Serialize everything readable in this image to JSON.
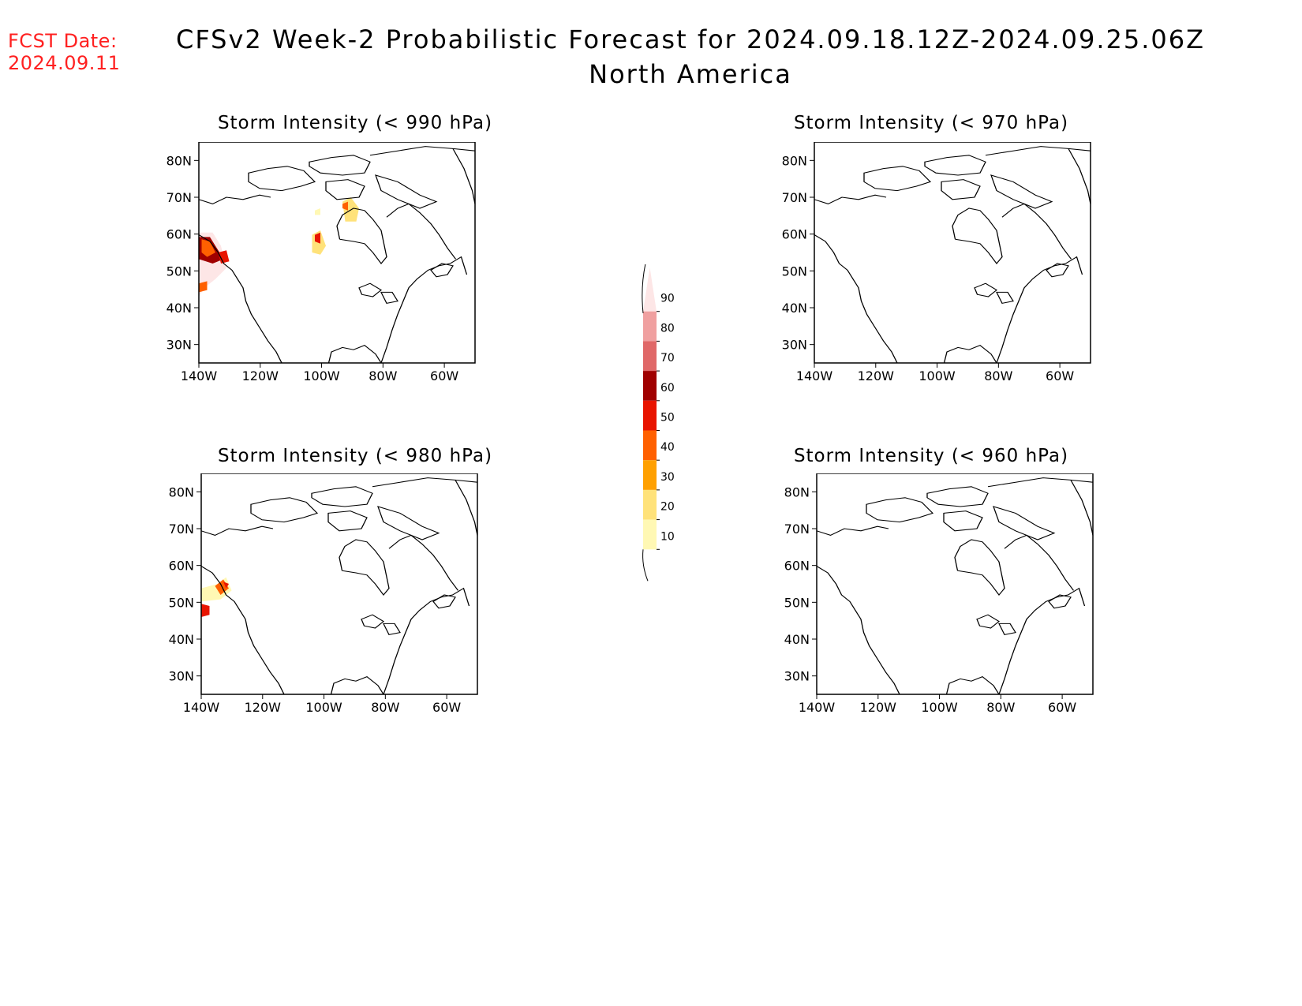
{
  "header": {
    "fcst_label": "FCST Date:",
    "fcst_date": "2024.09.11",
    "title": "CFSv2 Week-2 Probabilistic Forecast for 2024.09.18.12Z-2024.09.25.06Z",
    "subtitle": "North America"
  },
  "panels": [
    {
      "id": "p990",
      "title": "Storm Intensity (< 990 hPa)"
    },
    {
      "id": "p970",
      "title": "Storm Intensity (< 970 hPa)"
    },
    {
      "id": "p980",
      "title": "Storm Intensity (< 980 hPa)"
    },
    {
      "id": "p960",
      "title": "Storm Intensity (< 960 hPa)"
    }
  ],
  "axes": {
    "lat_labels": [
      "80N",
      "70N",
      "60N",
      "50N",
      "40N",
      "30N"
    ],
    "lon_labels": [
      "140W",
      "120W",
      "100W",
      "80W",
      "60W"
    ],
    "lat_range": [
      25,
      85
    ],
    "lon_range": [
      -140,
      -50
    ]
  },
  "colorbar": {
    "labels": [
      "90",
      "80",
      "70",
      "60",
      "50",
      "40",
      "30",
      "20",
      "10"
    ],
    "levels": [
      {
        "min": 10,
        "max": 20,
        "color": "#fff8b4"
      },
      {
        "min": 20,
        "max": 30,
        "color": "#ffe27a"
      },
      {
        "min": 30,
        "max": 40,
        "color": "#ffa000"
      },
      {
        "min": 40,
        "max": 50,
        "color": "#ff6000"
      },
      {
        "min": 50,
        "max": 60,
        "color": "#e81400"
      },
      {
        "min": 60,
        "max": 70,
        "color": "#a00000"
      },
      {
        "min": 70,
        "max": 80,
        "color": "#e06868"
      },
      {
        "min": 80,
        "max": 90,
        "color": "#f0a0a0"
      },
      {
        "min": 90,
        "max": 100,
        "color": "#fde6e6"
      }
    ]
  }
}
